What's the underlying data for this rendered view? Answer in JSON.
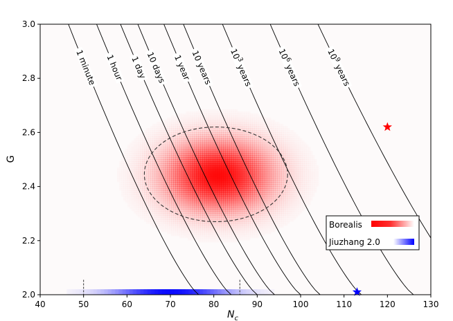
{
  "chart_data": {
    "type": "heatmap",
    "xlabel_main": "N",
    "xlabel_sub": "c",
    "ylabel": "G",
    "xlim": [
      40,
      130
    ],
    "ylim": [
      2.0,
      3.0
    ],
    "xticks": [
      40,
      50,
      60,
      70,
      80,
      90,
      100,
      110,
      120,
      130
    ],
    "yticks": [
      2.0,
      2.2,
      2.4,
      2.6,
      2.8,
      3.0
    ],
    "ytick_labels": [
      "2.0",
      "2.2",
      "2.4",
      "2.6",
      "2.8",
      "3.0"
    ],
    "contours": [
      {
        "label": "1 minute",
        "x_at_top": 46.5,
        "x_at_bottom": 76.5
      },
      {
        "label": "1 hour",
        "x_at_top": 53.0,
        "x_at_bottom": 84.0
      },
      {
        "label": "1 day",
        "x_at_top": 58.5,
        "x_at_bottom": 90.0
      },
      {
        "label": "10 days",
        "x_at_top": 62.5,
        "x_at_bottom": 94.0
      },
      {
        "label": "1 year",
        "x_at_top": 68.5,
        "x_at_bottom": 100.0
      },
      {
        "label": "10 years",
        "x_at_top": 73.0,
        "x_at_bottom": 104.5
      },
      {
        "label": "10",
        "label_exp": "3",
        "label_unit": " years",
        "x_at_top": 82.0,
        "x_at_bottom": 114.0
      },
      {
        "label": "10",
        "label_exp": "6",
        "label_unit": " years",
        "x_at_top": 93.0,
        "x_at_bottom": 126.0
      },
      {
        "label": "10",
        "label_exp": "9",
        "label_unit": " years",
        "x_at_top": 104.0,
        "x_at_bottom": 140.0
      }
    ],
    "series": [
      {
        "name": "Borealis",
        "color": "#ff0000",
        "heatmap": {
          "center": [
            81.0,
            2.44
          ],
          "sigma": [
            8.0,
            0.085
          ]
        },
        "ellipse": {
          "center": [
            80.5,
            2.445
          ],
          "radius": [
            16.5,
            0.175
          ]
        },
        "star": [
          120.0,
          2.62
        ]
      },
      {
        "name": "Jiuzhang 2.0",
        "color": "#0000ff",
        "strip": {
          "y": 2.01,
          "x_center": 70.0,
          "sigma": 9.0
        },
        "dashed_markers": [
          50.0,
          86.0
        ],
        "star": [
          113.0,
          2.01
        ]
      }
    ],
    "legend_position": "lower-right",
    "grid": false
  }
}
